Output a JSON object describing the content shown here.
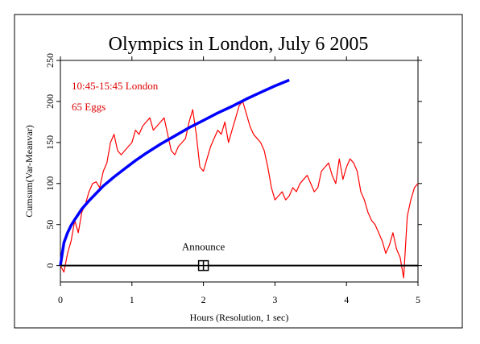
{
  "chart_data": {
    "type": "line",
    "title": "Olympics in London, July 6 2005",
    "xlabel": "Hours (Resolution, 1 sec)",
    "ylabel": "Cumsum(Var-Meanvar)",
    "xlim": [
      0,
      5
    ],
    "ylim": [
      -20,
      250
    ],
    "xticks": [
      0,
      1,
      2,
      3,
      4,
      5
    ],
    "yticks": [
      0,
      50,
      100,
      150,
      200,
      250
    ],
    "annotations": {
      "time_window": "10:45-15:45 London",
      "eggs": "65 Eggs",
      "event_label": "Announce"
    },
    "event_marker": {
      "x": 2.0,
      "y": 0
    },
    "baseline": {
      "y": 0
    },
    "series": [
      {
        "color": "#ff0000",
        "x": [
          0.0,
          0.05,
          0.1,
          0.15,
          0.2,
          0.25,
          0.3,
          0.35,
          0.4,
          0.45,
          0.5,
          0.55,
          0.6,
          0.65,
          0.7,
          0.75,
          0.8,
          0.85,
          0.9,
          0.95,
          1.0,
          1.05,
          1.1,
          1.15,
          1.2,
          1.25,
          1.3,
          1.35,
          1.4,
          1.45,
          1.5,
          1.55,
          1.6,
          1.65,
          1.7,
          1.75,
          1.8,
          1.85,
          1.9,
          1.95,
          2.0,
          2.05,
          2.1,
          2.15,
          2.2,
          2.25,
          2.3,
          2.35,
          2.4,
          2.45,
          2.5,
          2.55,
          2.6,
          2.65,
          2.7,
          2.75,
          2.8,
          2.85,
          2.9,
          2.95,
          3.0,
          3.05,
          3.1,
          3.15,
          3.2,
          3.25,
          3.3,
          3.35,
          3.4,
          3.45,
          3.5,
          3.55,
          3.6,
          3.65,
          3.7,
          3.75,
          3.8,
          3.85,
          3.9,
          3.95,
          4.0,
          4.05,
          4.1,
          4.15,
          4.2,
          4.25,
          4.3,
          4.35,
          4.4,
          4.45,
          4.5,
          4.55,
          4.6,
          4.65,
          4.7,
          4.75,
          4.8,
          4.85,
          4.9,
          4.95,
          5.0
        ],
        "y": [
          0,
          -8,
          15,
          30,
          55,
          40,
          65,
          75,
          90,
          100,
          102,
          95,
          115,
          125,
          150,
          160,
          140,
          135,
          140,
          145,
          150,
          165,
          160,
          170,
          175,
          180,
          165,
          170,
          175,
          180,
          160,
          140,
          135,
          145,
          150,
          155,
          175,
          190,
          160,
          120,
          115,
          130,
          145,
          155,
          165,
          160,
          175,
          150,
          165,
          180,
          195,
          200,
          185,
          170,
          160,
          155,
          150,
          140,
          120,
          95,
          80,
          85,
          90,
          80,
          85,
          95,
          90,
          100,
          105,
          110,
          100,
          90,
          95,
          115,
          120,
          125,
          110,
          100,
          130,
          105,
          120,
          130,
          125,
          115,
          90,
          80,
          65,
          55,
          50,
          40,
          30,
          15,
          25,
          40,
          20,
          10,
          -15,
          60,
          80,
          95,
          100
        ]
      },
      {
        "color": "#0000ff",
        "x": [
          0.0,
          0.05,
          0.1,
          0.15,
          0.2,
          0.3,
          0.4,
          0.5,
          0.6,
          0.75,
          0.9,
          1.05,
          1.2,
          1.4,
          1.6,
          1.8,
          2.0,
          2.2,
          2.4,
          2.6,
          2.8,
          3.0,
          3.2
        ],
        "y": [
          0,
          28,
          40,
          49,
          56,
          69,
          79,
          88,
          97,
          108,
          118,
          128,
          137,
          148,
          158,
          168,
          177,
          186,
          194,
          203,
          211,
          219,
          226
        ]
      }
    ]
  }
}
